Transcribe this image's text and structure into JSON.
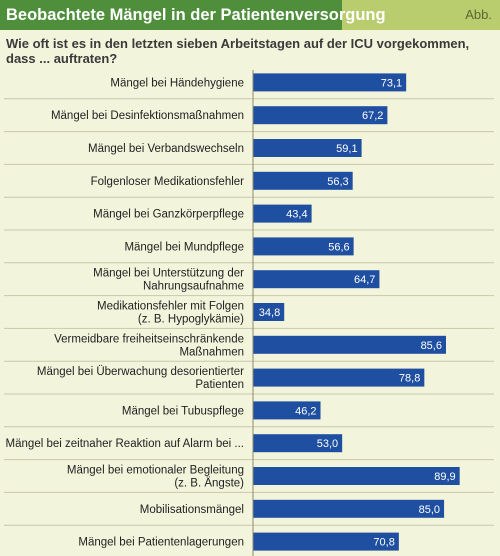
{
  "header": {
    "title": "Beobachtete Mängel in der Patientenversorgung",
    "figure_ref": "Abb."
  },
  "colors": {
    "header_green": "#4f8f3c",
    "header_light": "#b9cc6e",
    "background": "#f3f4dc",
    "bar": "#1f4fa0"
  },
  "chart_data": {
    "type": "bar",
    "orientation": "horizontal",
    "title": "Wie oft ist es in den letzten sieben Arbeitstagen auf der ICU vorgekommen, dass ... auftraten?",
    "categories": [
      [
        "Mängel bei Händehygiene"
      ],
      [
        "Mängel bei Desinfektionsmaßnahmen"
      ],
      [
        "Mängel bei Verbandswechseln"
      ],
      [
        "Folgenloser Medikationsfehler"
      ],
      [
        "Mängel bei Ganzkörperpflege"
      ],
      [
        "Mängel bei Mundpflege"
      ],
      [
        "Mängel bei Unterstützung der",
        "Nahrungsaufnahme"
      ],
      [
        "Medikationsfehler mit Folgen",
        "(z. B. Hypoglykämie)"
      ],
      [
        "Vermeidbare freiheitseinschränkende",
        "Maßnahmen"
      ],
      [
        "Mängel bei Überwachung desorientierter",
        "Patienten"
      ],
      [
        "Mängel bei Tubuspflege"
      ],
      [
        "Mängel bei zeitnaher Reaktion auf Alarm bei ..."
      ],
      [
        "Mängel bei emotionaler Begleitung",
        "(z. B. Ängste)"
      ],
      [
        "Mobilisationsmängel"
      ],
      [
        "Mängel bei Patientenlagerungen"
      ]
    ],
    "values": [
      73.1,
      67.2,
      59.1,
      56.3,
      43.4,
      56.6,
      64.7,
      34.8,
      85.6,
      78.8,
      46.2,
      53.0,
      89.9,
      85.0,
      70.8
    ],
    "value_labels": [
      "73,1",
      "67,2",
      "59,1",
      "56,3",
      "43,4",
      "56,6",
      "64,7",
      "34,8",
      "85,6",
      "78,8",
      "46,2",
      "53,0",
      "89,9",
      "85,0",
      "70,8"
    ],
    "xlim": [
      0,
      100
    ],
    "grid": false,
    "legend": "none"
  }
}
